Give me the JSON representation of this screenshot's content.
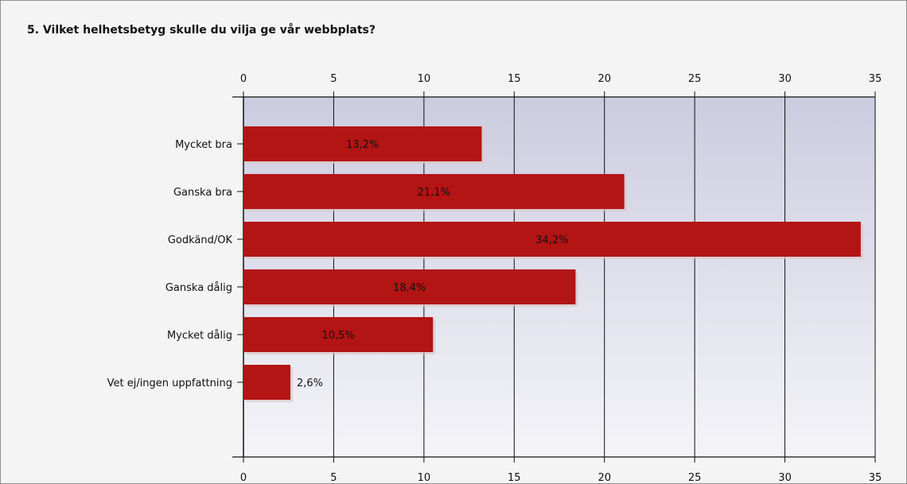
{
  "title": "5. Vilket helhetsbetyg skulle du vilja ge vår webbplats?",
  "colors": {
    "bar": "#b31414",
    "plot_top": "#cccce0",
    "plot_bottom": "#f4f4f8",
    "axis": "#111111",
    "grid": "#111111"
  },
  "chart_data": {
    "type": "bar",
    "orientation": "horizontal",
    "title": "5. Vilket helhetsbetyg skulle du vilja ge vår webbplats?",
    "categories": [
      "Mycket bra",
      "Ganska bra",
      "Godkänd/OK",
      "Ganska dålig",
      "Mycket dålig",
      "Vet ej/ingen uppfattning"
    ],
    "values": [
      13.2,
      21.1,
      34.2,
      18.4,
      10.5,
      2.6
    ],
    "value_labels": [
      "13,2%",
      "21,1%",
      "34,2%",
      "18,4%",
      "10,5%",
      "2,6%"
    ],
    "xlim": [
      0,
      35
    ],
    "xticks": [
      0,
      5,
      10,
      15,
      20,
      25,
      30,
      35
    ],
    "xtick_labels": [
      "0",
      "5",
      "10",
      "15",
      "20",
      "25",
      "30",
      "35"
    ],
    "axis_top": true,
    "axis_bottom": true,
    "grid": true,
    "legend": "none"
  }
}
